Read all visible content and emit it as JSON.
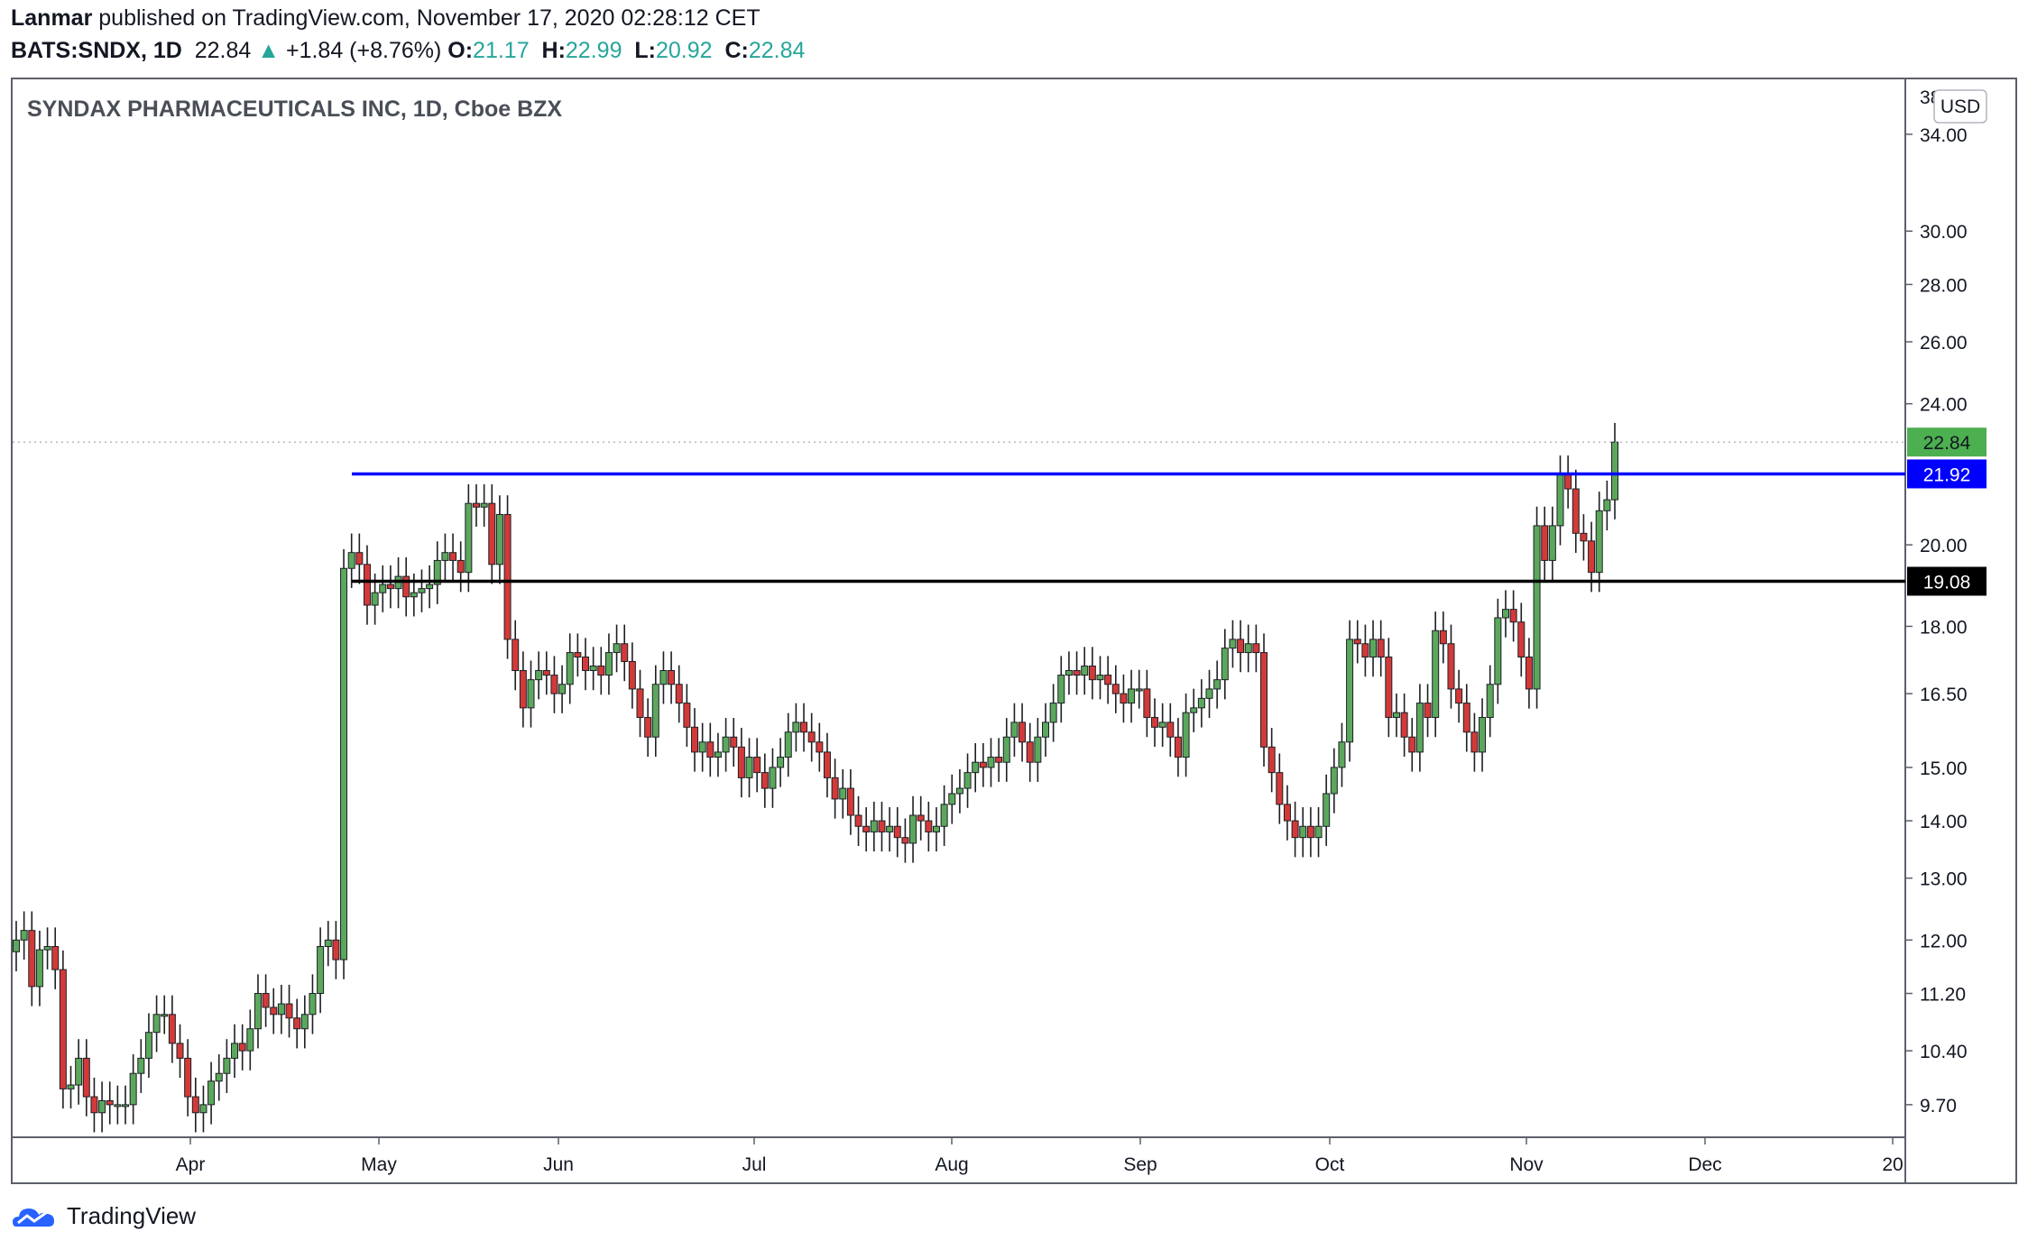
{
  "header": {
    "author": "Lanmar",
    "published_text": " published on TradingView.com, November 17, 2020 02:28:12 CET",
    "ticker": "BATS:SNDX, 1D",
    "last": "22.84",
    "change": "+1.84 (+8.76%)",
    "o_label": "O:",
    "o_value": "21.17",
    "h_label": "H:",
    "h_value": "22.99",
    "l_label": "L:",
    "l_value": "20.92",
    "c_label": "C:",
    "c_value": "22.84"
  },
  "footer": {
    "brand": "TradingView"
  },
  "chart_data": {
    "type": "candlestick",
    "title": "SYNDAX PHARMACEUTICALS INC, 1D, Cboe BZX",
    "currency_button": "USD",
    "y_scale": "log",
    "ylim": [
      9.3,
      36.5
    ],
    "x_tick_labels": [
      "Apr",
      "May",
      "Jun",
      "Jul",
      "Aug",
      "Sep",
      "Oct",
      "Nov",
      "Dec",
      "20"
    ],
    "y_tick_labels": [
      "34.00",
      "30.00",
      "28.00",
      "26.00",
      "24.00",
      "20.00",
      "18.00",
      "16.50",
      "15.00",
      "14.00",
      "13.00",
      "12.00",
      "11.20",
      "10.40",
      "9.70"
    ],
    "y_top_partial_label": "38",
    "horizontal_lines": [
      {
        "value": 21.92,
        "label": "21.92",
        "color": "#0000ff"
      },
      {
        "value": 19.08,
        "label": "19.08",
        "color": "#000000"
      }
    ],
    "last_price": {
      "value": 22.84,
      "label": "22.84",
      "color": "#4caf50"
    },
    "candle_up_color": "#5ba85d",
    "candle_down_color": "#d23a3a",
    "closes": [
      12.0,
      12.15,
      11.3,
      11.85,
      11.9,
      11.55,
      9.9,
      9.95,
      10.3,
      9.8,
      9.6,
      9.75,
      9.7,
      9.7,
      9.7,
      10.1,
      10.3,
      10.65,
      10.9,
      10.9,
      10.5,
      10.3,
      9.8,
      9.6,
      9.7,
      10.0,
      10.1,
      10.3,
      10.5,
      10.4,
      10.7,
      11.2,
      11.0,
      10.9,
      11.05,
      10.85,
      10.7,
      10.9,
      11.2,
      11.9,
      12.0,
      11.7,
      19.4,
      19.8,
      19.5,
      18.5,
      18.8,
      19.0,
      18.9,
      19.2,
      18.7,
      18.8,
      18.9,
      19.0,
      19.6,
      19.8,
      19.6,
      19.3,
      21.1,
      21.0,
      21.1,
      19.5,
      20.8,
      17.7,
      17.0,
      16.2,
      16.8,
      17.0,
      16.9,
      16.5,
      16.7,
      17.4,
      17.3,
      17.0,
      17.1,
      16.9,
      17.4,
      17.6,
      17.2,
      16.6,
      16.0,
      15.6,
      16.7,
      17.0,
      16.7,
      16.3,
      15.8,
      15.3,
      15.5,
      15.2,
      15.3,
      15.6,
      15.4,
      14.8,
      15.2,
      14.9,
      14.6,
      15.0,
      15.2,
      15.7,
      15.9,
      15.7,
      15.5,
      15.3,
      14.8,
      14.4,
      14.6,
      14.1,
      13.9,
      13.8,
      14.0,
      13.8,
      13.9,
      13.7,
      13.6,
      14.1,
      14.0,
      13.8,
      13.9,
      14.3,
      14.5,
      14.6,
      14.9,
      15.1,
      15.0,
      15.2,
      15.1,
      15.6,
      15.9,
      15.5,
      15.1,
      15.6,
      15.9,
      16.3,
      16.9,
      17.0,
      16.9,
      17.1,
      16.8,
      16.9,
      16.7,
      16.5,
      16.3,
      16.6,
      16.6,
      16.0,
      15.8,
      15.9,
      15.6,
      15.2,
      16.1,
      16.2,
      16.4,
      16.6,
      16.8,
      17.5,
      17.7,
      17.4,
      17.6,
      17.4,
      15.4,
      14.9,
      14.3,
      14.0,
      13.7,
      13.9,
      13.7,
      13.9,
      14.5,
      15.0,
      15.5,
      17.7,
      17.6,
      17.3,
      17.7,
      17.3,
      16.0,
      16.1,
      15.6,
      15.3,
      16.3,
      16.0,
      17.9,
      17.6,
      16.6,
      16.3,
      15.7,
      15.3,
      16.0,
      16.7,
      18.2,
      18.4,
      18.1,
      17.3,
      16.6,
      20.5,
      19.6,
      20.5,
      21.9,
      21.5,
      20.3,
      20.1,
      19.3,
      20.9,
      21.2,
      22.84
    ]
  }
}
